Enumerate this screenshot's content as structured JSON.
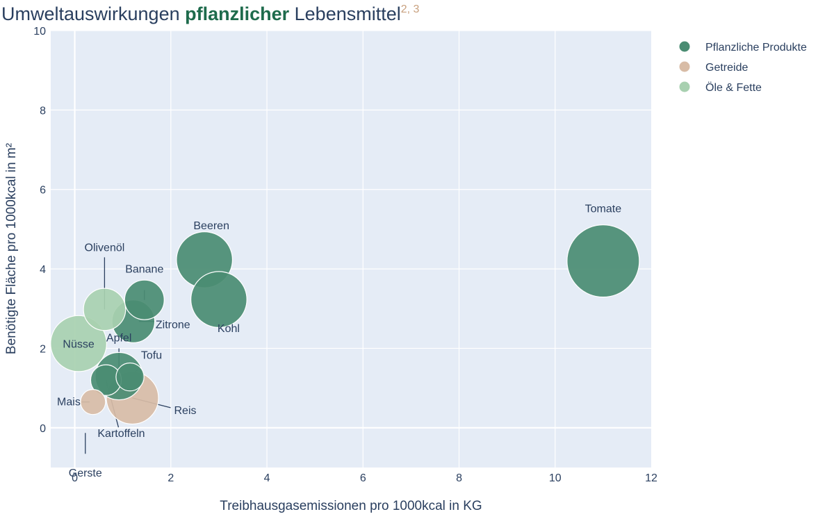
{
  "title": {
    "part1": "Umweltauswirkungen ",
    "part2": "pflanzlicher",
    "part3": " Lebensmittel",
    "superscript": "2, 3"
  },
  "colors": {
    "title_text": "#2a3f5f",
    "title_accent": "#1e6b4c",
    "superscript": "#c8a07e",
    "plot_bg": "#e5ecf6",
    "grid": "#ffffff",
    "axis_text": "#2a3f5f"
  },
  "chart_data": {
    "type": "scatter",
    "subtype": "bubble",
    "xlabel": "Treibhausgasemissionen pro 1000kcal in KG",
    "ylabel": "Benötigte Fläche pro 1000kcal in m²",
    "xlim": [
      -0.5,
      12
    ],
    "ylim": [
      -1,
      10
    ],
    "xticks": [
      0,
      2,
      4,
      6,
      8,
      10,
      12
    ],
    "yticks": [
      0,
      2,
      4,
      6,
      8,
      10
    ],
    "grid": true,
    "legend_position": "top-right",
    "series": [
      {
        "name": "Pflanzliche Produkte",
        "color": "#4a8c72",
        "points": [
          {
            "label": "Tomate",
            "x": 11.0,
            "y": 4.2,
            "size": 1.0
          },
          {
            "label": "Beeren",
            "x": 2.7,
            "y": 4.23,
            "size": 0.6
          },
          {
            "label": "Kohl",
            "x": 3.0,
            "y": 3.23,
            "size": 0.6
          },
          {
            "label": "Banane",
            "x": 1.45,
            "y": 3.22,
            "size": 0.3
          },
          {
            "label": "Zitrone",
            "x": 1.22,
            "y": 2.68,
            "size": 0.35
          },
          {
            "label": "Apfel",
            "x": 0.92,
            "y": 1.3,
            "size": 0.43
          },
          {
            "label": "Tofu",
            "x": 1.15,
            "y": 1.28,
            "size": 0.15
          },
          {
            "label": "Kartoffeln",
            "x": 0.65,
            "y": 1.2,
            "size": 0.18
          }
        ]
      },
      {
        "name": "Getreide",
        "color": "#d8bca6",
        "points": [
          {
            "label": "Reis",
            "x": 1.2,
            "y": 0.75,
            "size": 0.52
          },
          {
            "label": "Mais",
            "x": 0.38,
            "y": 0.65,
            "size": 0.12
          },
          {
            "label": "Gerste",
            "x": 0.22,
            "y": 0.15,
            "size": 0.0
          }
        ]
      },
      {
        "name": "Öle & Fette",
        "color": "#a8d0b0",
        "points": [
          {
            "label": "Olivenöl",
            "x": 0.62,
            "y": 2.98,
            "size": 0.34
          },
          {
            "label": "Nüsse",
            "x": 0.08,
            "y": 2.12,
            "size": 0.6
          }
        ]
      }
    ]
  }
}
